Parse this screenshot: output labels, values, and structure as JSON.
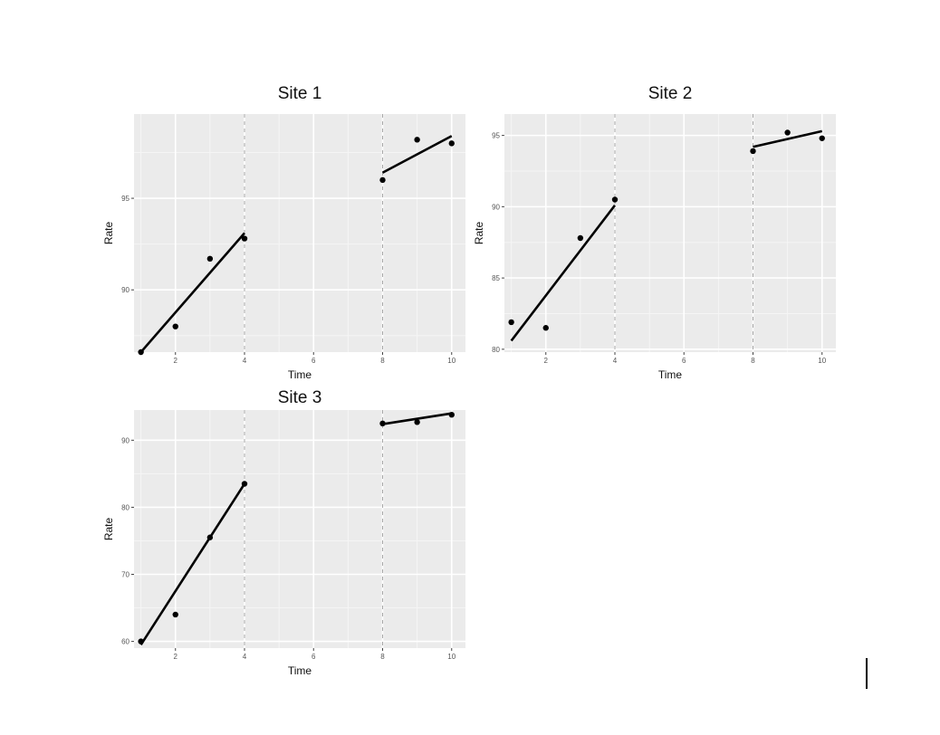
{
  "chart_data": [
    {
      "type": "scatter",
      "title": "Site 1",
      "xlabel": "Time",
      "ylabel": "Rate",
      "xlim": [
        0.8,
        10.4
      ],
      "ylim": [
        86.6,
        99.6
      ],
      "xticks": [
        2,
        4,
        6,
        8,
        10
      ],
      "xtick_labels": [
        "2",
        "4",
        "6",
        "8",
        "10"
      ],
      "yticks": [
        90,
        95
      ],
      "ytick_labels": [
        "90",
        "95"
      ],
      "vlines": [
        4,
        8
      ],
      "grid": true,
      "points": {
        "x": [
          1,
          2,
          3,
          4,
          8,
          9,
          10
        ],
        "y": [
          86.6,
          88.0,
          91.7,
          92.8,
          96.0,
          98.2,
          98.0
        ]
      },
      "fit_segments": [
        {
          "x": [
            1,
            4
          ],
          "y": [
            86.6,
            93.1
          ]
        },
        {
          "x": [
            8,
            10
          ],
          "y": [
            96.4,
            98.4
          ]
        }
      ]
    },
    {
      "type": "scatter",
      "title": "Site 2",
      "xlabel": "Time",
      "ylabel": "Rate",
      "xlim": [
        0.8,
        10.4
      ],
      "ylim": [
        79.8,
        96.5
      ],
      "xticks": [
        2,
        4,
        6,
        8,
        10
      ],
      "xtick_labels": [
        "2",
        "4",
        "6",
        "8",
        "10"
      ],
      "yticks": [
        80,
        85,
        90,
        95
      ],
      "ytick_labels": [
        "80",
        "85",
        "90",
        "95"
      ],
      "vlines": [
        4,
        8
      ],
      "grid": true,
      "points": {
        "x": [
          1,
          2,
          3,
          4,
          8,
          9,
          10
        ],
        "y": [
          81.9,
          81.5,
          87.8,
          90.5,
          93.9,
          95.2,
          94.8
        ]
      },
      "fit_segments": [
        {
          "x": [
            1,
            4
          ],
          "y": [
            80.6,
            90.1
          ]
        },
        {
          "x": [
            8,
            10
          ],
          "y": [
            94.2,
            95.3
          ]
        }
      ]
    },
    {
      "type": "scatter",
      "title": "Site 3",
      "xlabel": "Time",
      "ylabel": "Rate",
      "xlim": [
        0.8,
        10.4
      ],
      "ylim": [
        59.0,
        94.5
      ],
      "xticks": [
        2,
        4,
        6,
        8,
        10
      ],
      "xtick_labels": [
        "2",
        "4",
        "6",
        "8",
        "10"
      ],
      "yticks": [
        60,
        70,
        80,
        90
      ],
      "ytick_labels": [
        "60",
        "70",
        "80",
        "90"
      ],
      "vlines": [
        4,
        8
      ],
      "grid": true,
      "points": {
        "x": [
          1,
          2,
          3,
          4,
          8,
          9,
          10
        ],
        "y": [
          60.0,
          64.0,
          75.5,
          83.5,
          92.5,
          92.7,
          93.8
        ]
      },
      "fit_segments": [
        {
          "x": [
            1,
            4
          ],
          "y": [
            59.5,
            83.5
          ]
        },
        {
          "x": [
            8,
            10
          ],
          "y": [
            92.4,
            94.0
          ]
        }
      ]
    }
  ]
}
